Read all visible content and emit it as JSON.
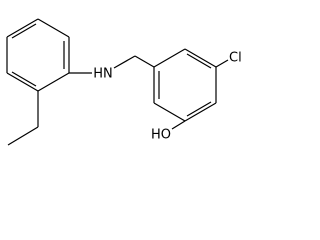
{
  "nodes": [
    {
      "label": "HN"
    },
    {
      "label": "Cl"
    },
    {
      "label": "HO"
    }
  ]
}
